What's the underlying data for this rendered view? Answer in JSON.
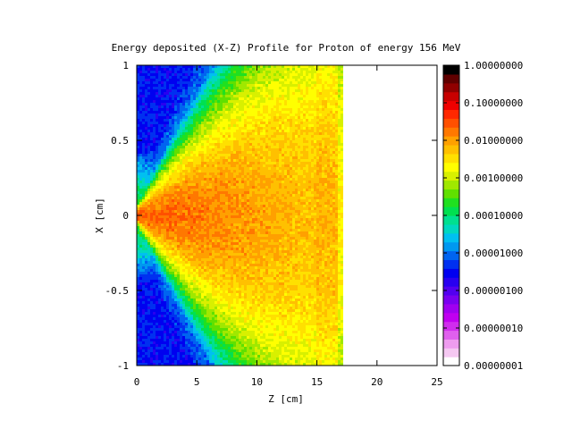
{
  "chart_data": {
    "type": "heatmap",
    "title": "Energy deposited (X-Z) Profile for Proton of energy 156 MeV",
    "xlabel": "Z [cm]",
    "ylabel": "X [cm]",
    "xlim": [
      0,
      25
    ],
    "ylim": [
      -1,
      1
    ],
    "x_ticks": [
      "0",
      "5",
      "10",
      "15",
      "20",
      "25"
    ],
    "y_ticks": [
      "1",
      "0.5",
      "0",
      "-0.5",
      "-1"
    ],
    "colorbar": {
      "scale": "log",
      "range": [
        1e-08,
        1
      ],
      "tick_labels": [
        "1.00000000",
        "0.10000000",
        "0.01000000",
        "0.00100000",
        "0.00010000",
        "0.00001000",
        "0.00000100",
        "0.00000010",
        "0.00000001"
      ],
      "colors": [
        "#ffffff",
        "#f5c8f2",
        "#ee9cef",
        "#e060ee",
        "#d02cee",
        "#c000f0",
        "#a000f0",
        "#7a00f0",
        "#5200f0",
        "#2800f0",
        "#0000f0",
        "#0030f0",
        "#0064f0",
        "#0098f0",
        "#00c0f0",
        "#00d8c0",
        "#00e090",
        "#00e050",
        "#20e020",
        "#60e000",
        "#a0e800",
        "#d8f000",
        "#ffff00",
        "#ffe000",
        "#ffc000",
        "#ffa000",
        "#ff7800",
        "#ff5000",
        "#ff2800",
        "#f00000",
        "#c80000",
        "#900000",
        "#600000",
        "#000000"
      ]
    },
    "depth_dose_profile": {
      "description_free": true,
      "z": [
        0,
        2,
        4,
        6,
        8,
        10,
        12,
        14,
        15,
        16,
        16.8,
        17,
        18
      ],
      "relative_log_peak": [
        -1.6,
        -1.7,
        -1.9,
        -2.0,
        -2.05,
        -2.05,
        -2.0,
        -1.95,
        -1.9,
        -1.85,
        -1.9,
        -6,
        -8
      ]
    },
    "range_cm": 17
  }
}
